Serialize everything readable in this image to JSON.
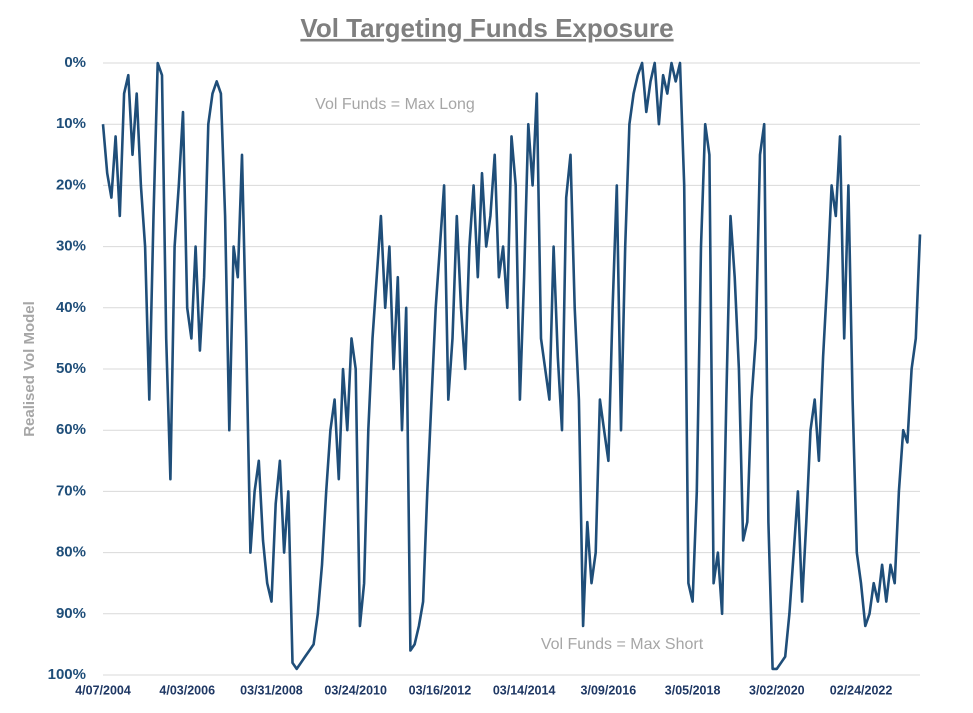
{
  "chart_data": {
    "type": "line",
    "title": "Vol Targeting Funds Exposure",
    "y_label": "Realised Vol Model",
    "annotations": [
      "Vol Funds = Max Long",
      "Vol Funds = Max Short"
    ],
    "categories": [
      "4/07/2004",
      null,
      null,
      null,
      null,
      null,
      null,
      null,
      null,
      null,
      null,
      null,
      null,
      null,
      null,
      null,
      null,
      null,
      null,
      null,
      "4/03/2006",
      null,
      null,
      null,
      null,
      null,
      null,
      null,
      null,
      null,
      null,
      null,
      null,
      null,
      null,
      null,
      null,
      null,
      null,
      null,
      "03/31/2008",
      null,
      null,
      null,
      null,
      null,
      null,
      null,
      null,
      null,
      null,
      null,
      null,
      null,
      null,
      null,
      null,
      null,
      null,
      null,
      "03/24/2010",
      null,
      null,
      null,
      null,
      null,
      null,
      null,
      null,
      null,
      null,
      null,
      null,
      null,
      null,
      null,
      null,
      null,
      null,
      null,
      "03/16/2012",
      null,
      null,
      null,
      null,
      null,
      null,
      null,
      null,
      null,
      null,
      null,
      null,
      null,
      null,
      null,
      null,
      null,
      null,
      null,
      "03/14/2014",
      null,
      null,
      null,
      null,
      null,
      null,
      null,
      null,
      null,
      null,
      null,
      null,
      null,
      null,
      null,
      null,
      null,
      null,
      null,
      "3/09/2016",
      null,
      null,
      null,
      null,
      null,
      null,
      null,
      null,
      null,
      null,
      null,
      null,
      null,
      null,
      null,
      null,
      null,
      null,
      null,
      "3/05/2018",
      null,
      null,
      null,
      null,
      null,
      null,
      null,
      null,
      null,
      null,
      null,
      null,
      null,
      null,
      null,
      null,
      null,
      null,
      null,
      "3/02/2020",
      null,
      null,
      null,
      null,
      null,
      null,
      null,
      null,
      null,
      null,
      null,
      null,
      null,
      null,
      null,
      null,
      null,
      null,
      null,
      "02/24/2022",
      null,
      null,
      null,
      null,
      null,
      null,
      null,
      null,
      null,
      null,
      null,
      null,
      null,
      null
    ],
    "series": [
      {
        "name": "Realised Vol Model",
        "color": "#1f4e79",
        "values": [
          10,
          18,
          22,
          12,
          25,
          5,
          2,
          15,
          5,
          20,
          30,
          55,
          25,
          0,
          2,
          45,
          68,
          30,
          20,
          8,
          40,
          45,
          30,
          47,
          35,
          10,
          5,
          3,
          5,
          25,
          60,
          30,
          35,
          15,
          45,
          80,
          70,
          65,
          78,
          85,
          88,
          72,
          65,
          80,
          70,
          98,
          99,
          98,
          97,
          96,
          95,
          90,
          82,
          70,
          60,
          55,
          68,
          50,
          60,
          45,
          50,
          92,
          85,
          60,
          45,
          35,
          25,
          40,
          30,
          50,
          35,
          60,
          40,
          96,
          95,
          92,
          88,
          70,
          55,
          40,
          30,
          20,
          55,
          45,
          25,
          40,
          50,
          30,
          20,
          35,
          18,
          30,
          25,
          15,
          35,
          30,
          40,
          12,
          20,
          55,
          35,
          10,
          20,
          5,
          45,
          50,
          55,
          30,
          48,
          60,
          22,
          15,
          40,
          55,
          92,
          75,
          85,
          80,
          55,
          60,
          65,
          40,
          20,
          60,
          30,
          10,
          5,
          2,
          0,
          8,
          3,
          0,
          10,
          2,
          5,
          0,
          3,
          0,
          20,
          85,
          88,
          70,
          30,
          10,
          15,
          85,
          80,
          90,
          55,
          25,
          35,
          50,
          78,
          75,
          55,
          45,
          15,
          10,
          75,
          99,
          99,
          98,
          97,
          90,
          80,
          70,
          88,
          75,
          60,
          55,
          65,
          48,
          35,
          20,
          25,
          12,
          45,
          20,
          55,
          80,
          85,
          92,
          90,
          85,
          88,
          82,
          88,
          82,
          85,
          70,
          60,
          62,
          50,
          45,
          28
        ]
      }
    ],
    "ylim": [
      100,
      0
    ],
    "yticks": [
      {
        "value": 0,
        "label": "0%"
      },
      {
        "value": 10,
        "label": "10%"
      },
      {
        "value": 20,
        "label": "20%"
      },
      {
        "value": 30,
        "label": "30%"
      },
      {
        "value": 40,
        "label": "40%"
      },
      {
        "value": 50,
        "label": "50%"
      },
      {
        "value": 60,
        "label": "60%"
      },
      {
        "value": 70,
        "label": "70%"
      },
      {
        "value": 80,
        "label": "80%"
      },
      {
        "value": 90,
        "label": "90%"
      },
      {
        "value": 100,
        "label": "100%"
      }
    ],
    "grid": true
  }
}
